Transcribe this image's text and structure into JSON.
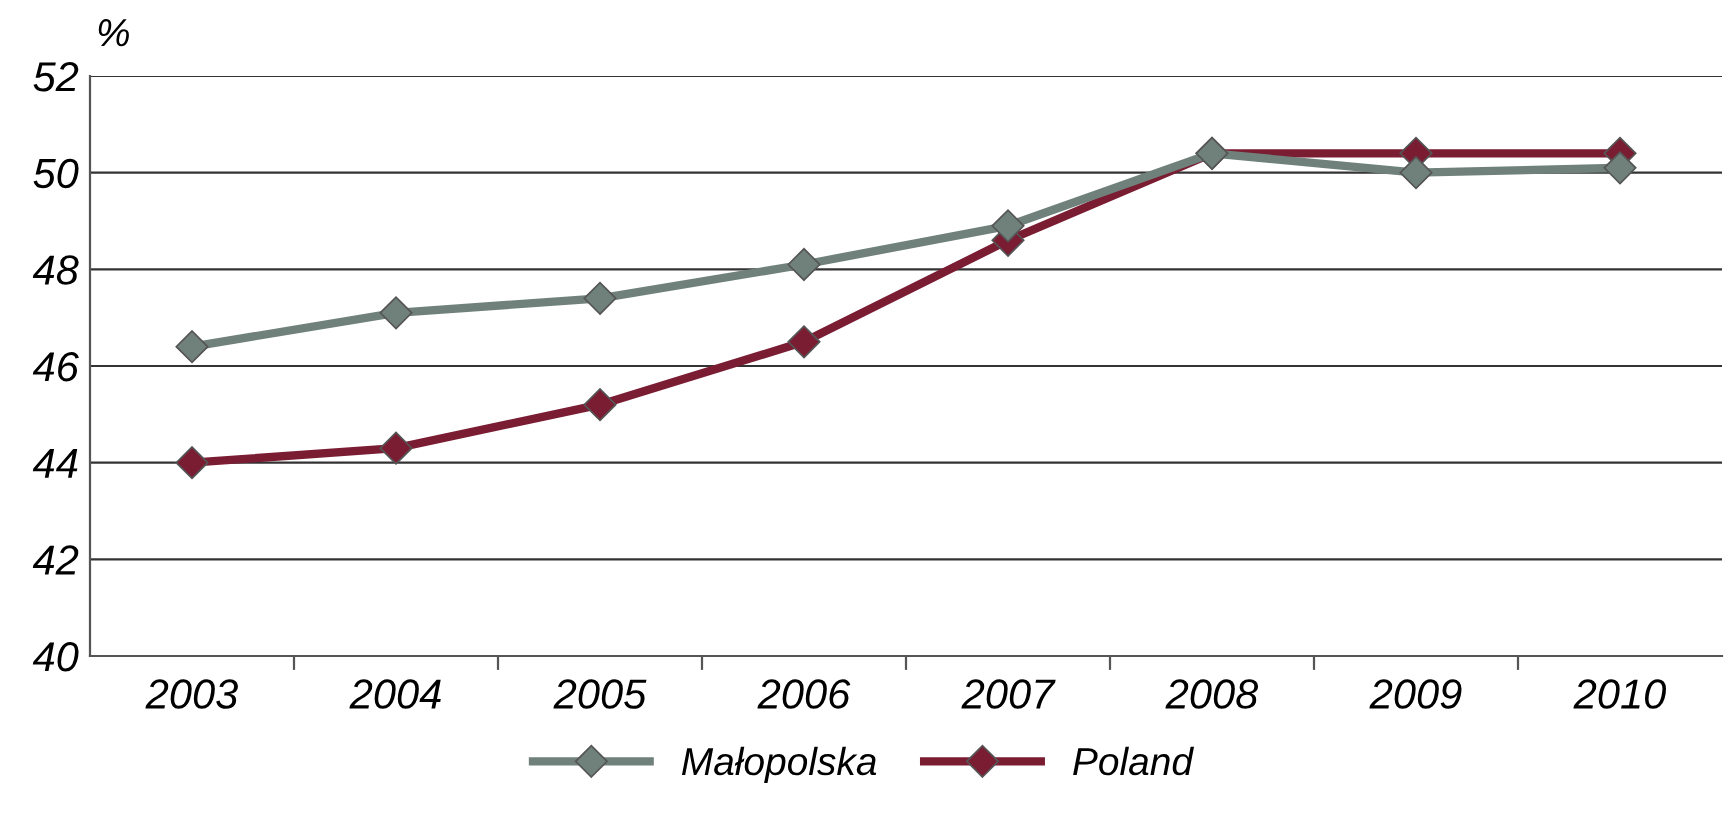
{
  "chart_data": {
    "type": "line",
    "ylabel": "%",
    "categories": [
      "2003",
      "2004",
      "2005",
      "2006",
      "2007",
      "2008",
      "2009",
      "2010"
    ],
    "series": [
      {
        "name": "Małopolska",
        "color": "#6f817a",
        "values": [
          46.4,
          47.1,
          47.4,
          48.1,
          48.9,
          50.4,
          50.0,
          50.1
        ]
      },
      {
        "name": "Poland",
        "color": "#7a1d33",
        "values": [
          44.0,
          44.3,
          45.2,
          46.5,
          48.6,
          50.4,
          50.4,
          50.4
        ]
      }
    ],
    "ylim": [
      40,
      52
    ],
    "yticks": [
      40,
      42,
      44,
      46,
      48,
      50,
      52
    ],
    "grid": "y",
    "legend": "bottom",
    "marker": "diamond",
    "line_style": "solid"
  }
}
